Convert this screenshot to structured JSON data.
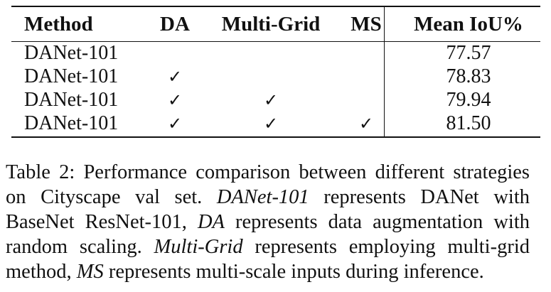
{
  "table": {
    "headers": [
      "Method",
      "DA",
      "Multi-Grid",
      "MS",
      "Mean IoU%"
    ],
    "check_mark": "✓",
    "rows": [
      {
        "method": "DANet-101",
        "da": false,
        "multi_grid": false,
        "ms": false,
        "miou": "77.57"
      },
      {
        "method": "DANet-101",
        "da": true,
        "multi_grid": false,
        "ms": false,
        "miou": "78.83"
      },
      {
        "method": "DANet-101",
        "da": true,
        "multi_grid": true,
        "ms": false,
        "miou": "79.94"
      },
      {
        "method": "DANet-101",
        "da": true,
        "multi_grid": true,
        "ms": true,
        "miou": "81.50"
      }
    ]
  },
  "caption": {
    "segments": [
      {
        "text": "Table 2: Performance comparison between different strategies on Cityscape val set. ",
        "italic": false
      },
      {
        "text": "DANet-101",
        "italic": true
      },
      {
        "text": " represents DANet with BaseNet ResNet-101, ",
        "italic": false
      },
      {
        "text": "DA",
        "italic": true
      },
      {
        "text": " represents data augmentation with random scaling. ",
        "italic": false
      },
      {
        "text": "Multi-Grid",
        "italic": true
      },
      {
        "text": " represents employing multi-grid method, ",
        "italic": false
      },
      {
        "text": "MS",
        "italic": true
      },
      {
        "text": " represents multi-scale inputs during inference.",
        "italic": false
      }
    ]
  }
}
